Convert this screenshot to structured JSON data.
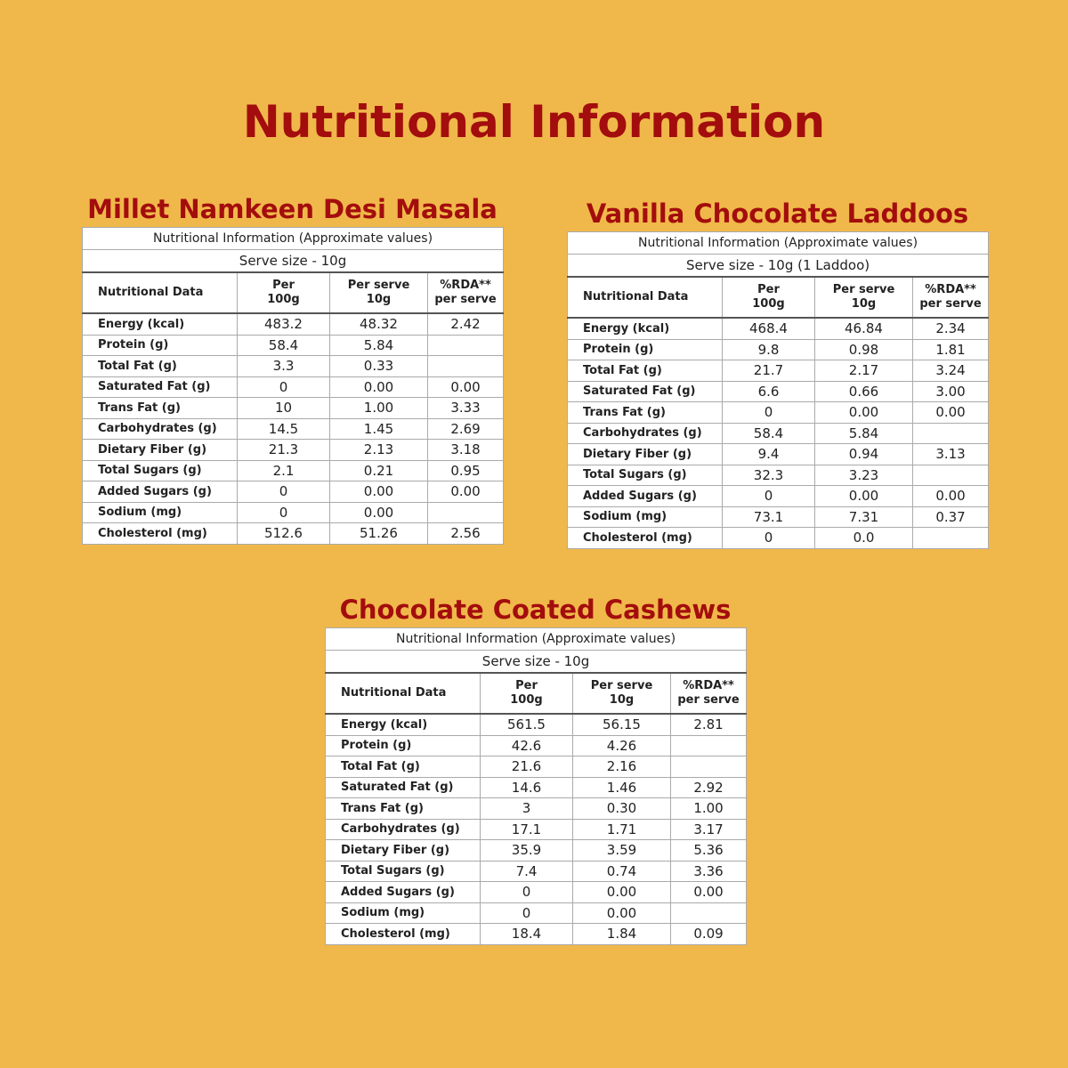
{
  "title": "Nutritional Information",
  "panels": [
    {
      "name": "Millet Namkeen Desi Masala",
      "table": {
        "caption": "Nutritional Information (Approximate values)",
        "serve": "Serve size - 10g",
        "headers": [
          [
            "Nutritional Data"
          ],
          [
            "Per",
            "100g"
          ],
          [
            "Per serve",
            "10g"
          ],
          [
            "%RDA**",
            "per serve"
          ]
        ],
        "rows": [
          [
            "Energy (kcal)",
            "483.2",
            "48.32",
            "2.42"
          ],
          [
            "Protein (g)",
            "58.4",
            "5.84",
            null
          ],
          [
            "Total Fat (g)",
            "3.3",
            "0.33",
            null
          ],
          [
            "Saturated Fat (g)",
            "0",
            "0.00",
            "0.00"
          ],
          [
            "Trans Fat (g)",
            "10",
            "1.00",
            "3.33"
          ],
          [
            "Carbohydrates (g)",
            "14.5",
            "1.45",
            "2.69"
          ],
          [
            "Dietary Fiber (g)",
            "21.3",
            "2.13",
            "3.18"
          ],
          [
            "Total Sugars (g)",
            "2.1",
            "0.21",
            "0.95"
          ],
          [
            "Added Sugars (g)",
            "0",
            "0.00",
            "0.00"
          ],
          [
            "Sodium (mg)",
            "0",
            "0.00",
            null
          ],
          [
            "Cholesterol (mg)",
            "512.6",
            "51.26",
            "2.56"
          ]
        ]
      }
    },
    {
      "name": "Vanilla Chocolate Laddoos",
      "table": {
        "caption": "Nutritional Information (Approximate values)",
        "serve": "Serve size - 10g (1 Laddoo)",
        "headers": [
          [
            "Nutritional Data"
          ],
          [
            "Per",
            "100g"
          ],
          [
            "Per serve",
            "10g"
          ],
          [
            "%RDA**",
            "per serve"
          ]
        ],
        "rows": [
          [
            "Energy (kcal)",
            "468.4",
            "46.84",
            "2.34"
          ],
          [
            "Protein (g)",
            "9.8",
            "0.98",
            "1.81"
          ],
          [
            "Total Fat (g)",
            "21.7",
            "2.17",
            "3.24"
          ],
          [
            "Saturated Fat (g)",
            "6.6",
            "0.66",
            "3.00"
          ],
          [
            "Trans Fat (g)",
            "0",
            "0.00",
            "0.00"
          ],
          [
            "Carbohydrates (g)",
            "58.4",
            "5.84",
            null
          ],
          [
            "Dietary Fiber (g)",
            "9.4",
            "0.94",
            "3.13"
          ],
          [
            "Total Sugars (g)",
            "32.3",
            "3.23",
            null
          ],
          [
            "Added Sugars (g)",
            "0",
            "0.00",
            "0.00"
          ],
          [
            "Sodium (mg)",
            "73.1",
            "7.31",
            "0.37"
          ],
          [
            "Cholesterol (mg)",
            "0",
            "0.0",
            null
          ]
        ]
      }
    },
    {
      "name": "Chocolate Coated Cashews",
      "table": {
        "caption": "Nutritional Information (Approximate values)",
        "serve": "Serve size - 10g",
        "headers": [
          [
            "Nutritional Data"
          ],
          [
            "Per",
            "100g"
          ],
          [
            "Per serve",
            "10g"
          ],
          [
            "%RDA**",
            "per serve"
          ]
        ],
        "rows": [
          [
            "Energy (kcal)",
            "561.5",
            "56.15",
            "2.81"
          ],
          [
            "Protein (g)",
            "42.6",
            "4.26",
            null
          ],
          [
            "Total Fat (g)",
            "21.6",
            "2.16",
            null
          ],
          [
            "Saturated Fat (g)",
            "14.6",
            "1.46",
            "2.92"
          ],
          [
            "Trans Fat (g)",
            "3",
            "0.30",
            "1.00"
          ],
          [
            "Carbohydrates (g)",
            "17.1",
            "1.71",
            "3.17"
          ],
          [
            "Dietary Fiber (g)",
            "35.9",
            "3.59",
            "5.36"
          ],
          [
            "Total Sugars (g)",
            "7.4",
            "0.74",
            "3.36"
          ],
          [
            "Added Sugars (g)",
            "0",
            "0.00",
            "0.00"
          ],
          [
            "Sodium (mg)",
            "0",
            "0.00",
            null
          ],
          [
            "Cholesterol (mg)",
            "18.4",
            "1.84",
            "0.09"
          ]
        ]
      }
    }
  ]
}
